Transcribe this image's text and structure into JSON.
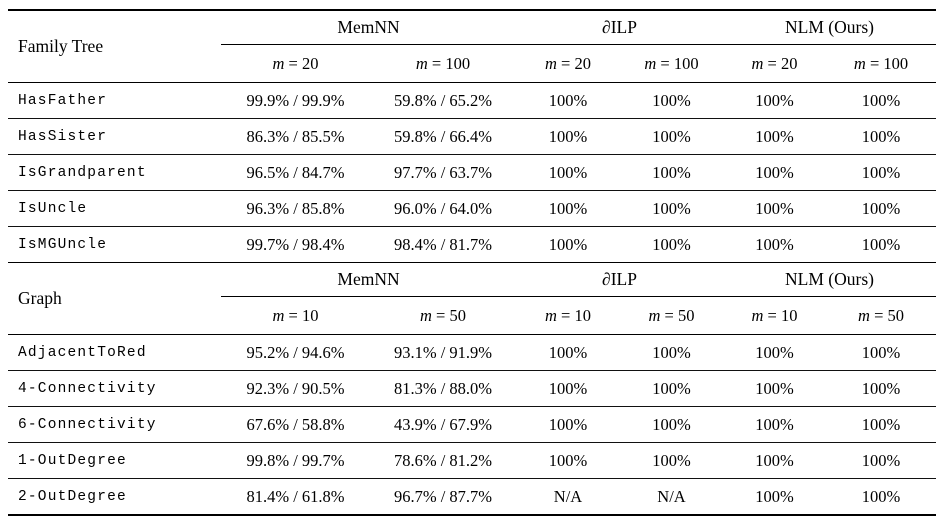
{
  "tables": [
    {
      "section_label": "Family Tree",
      "groups": [
        {
          "label": "MemNN"
        },
        {
          "label": "∂ILP"
        },
        {
          "label": "NLM (Ours)"
        }
      ],
      "subheaders": [
        {
          "var": "m",
          "rest": "= 20"
        },
        {
          "var": "m",
          "rest": "= 100"
        },
        {
          "var": "m",
          "rest": "= 20"
        },
        {
          "var": "m",
          "rest": "= 100"
        },
        {
          "var": "m",
          "rest": "= 20"
        },
        {
          "var": "m",
          "rest": "= 100"
        }
      ],
      "rows": [
        {
          "label": "HasFather",
          "values": [
            "99.9% / 99.9%",
            "59.8% / 65.2%",
            "100%",
            "100%",
            "100%",
            "100%"
          ]
        },
        {
          "label": "HasSister",
          "values": [
            "86.3% / 85.5%",
            "59.8% / 66.4%",
            "100%",
            "100%",
            "100%",
            "100%"
          ]
        },
        {
          "label": "IsGrandparent",
          "values": [
            "96.5% / 84.7%",
            "97.7% / 63.7%",
            "100%",
            "100%",
            "100%",
            "100%"
          ]
        },
        {
          "label": "IsUncle",
          "values": [
            "96.3% / 85.8%",
            "96.0% / 64.0%",
            "100%",
            "100%",
            "100%",
            "100%"
          ]
        },
        {
          "label": "IsMGUncle",
          "values": [
            "99.7% / 98.4%",
            "98.4% / 81.7%",
            "100%",
            "100%",
            "100%",
            "100%"
          ]
        }
      ]
    },
    {
      "section_label": "Graph",
      "groups": [
        {
          "label": "MemNN"
        },
        {
          "label": "∂ILP"
        },
        {
          "label": "NLM (Ours)"
        }
      ],
      "subheaders": [
        {
          "var": "m",
          "rest": "= 10"
        },
        {
          "var": "m",
          "rest": "= 50"
        },
        {
          "var": "m",
          "rest": "= 10"
        },
        {
          "var": "m",
          "rest": "= 50"
        },
        {
          "var": "m",
          "rest": "= 10"
        },
        {
          "var": "m",
          "rest": "= 50"
        }
      ],
      "rows": [
        {
          "label": "AdjacentToRed",
          "values": [
            "95.2% / 94.6%",
            "93.1% / 91.9%",
            "100%",
            "100%",
            "100%",
            "100%"
          ]
        },
        {
          "label": "4-Connectivity",
          "values": [
            "92.3% / 90.5%",
            "81.3% / 88.0%",
            "100%",
            "100%",
            "100%",
            "100%"
          ]
        },
        {
          "label": "6-Connectivity",
          "values": [
            "67.6% / 58.8%",
            "43.9% / 67.9%",
            "100%",
            "100%",
            "100%",
            "100%"
          ]
        },
        {
          "label": "1-OutDegree",
          "values": [
            "99.8% / 99.7%",
            "78.6% / 81.2%",
            "100%",
            "100%",
            "100%",
            "100%"
          ]
        },
        {
          "label": "2-OutDegree",
          "values": [
            "81.4% / 61.8%",
            "96.7% / 87.7%",
            "N/A",
            "N/A",
            "100%",
            "100%"
          ]
        }
      ]
    }
  ]
}
